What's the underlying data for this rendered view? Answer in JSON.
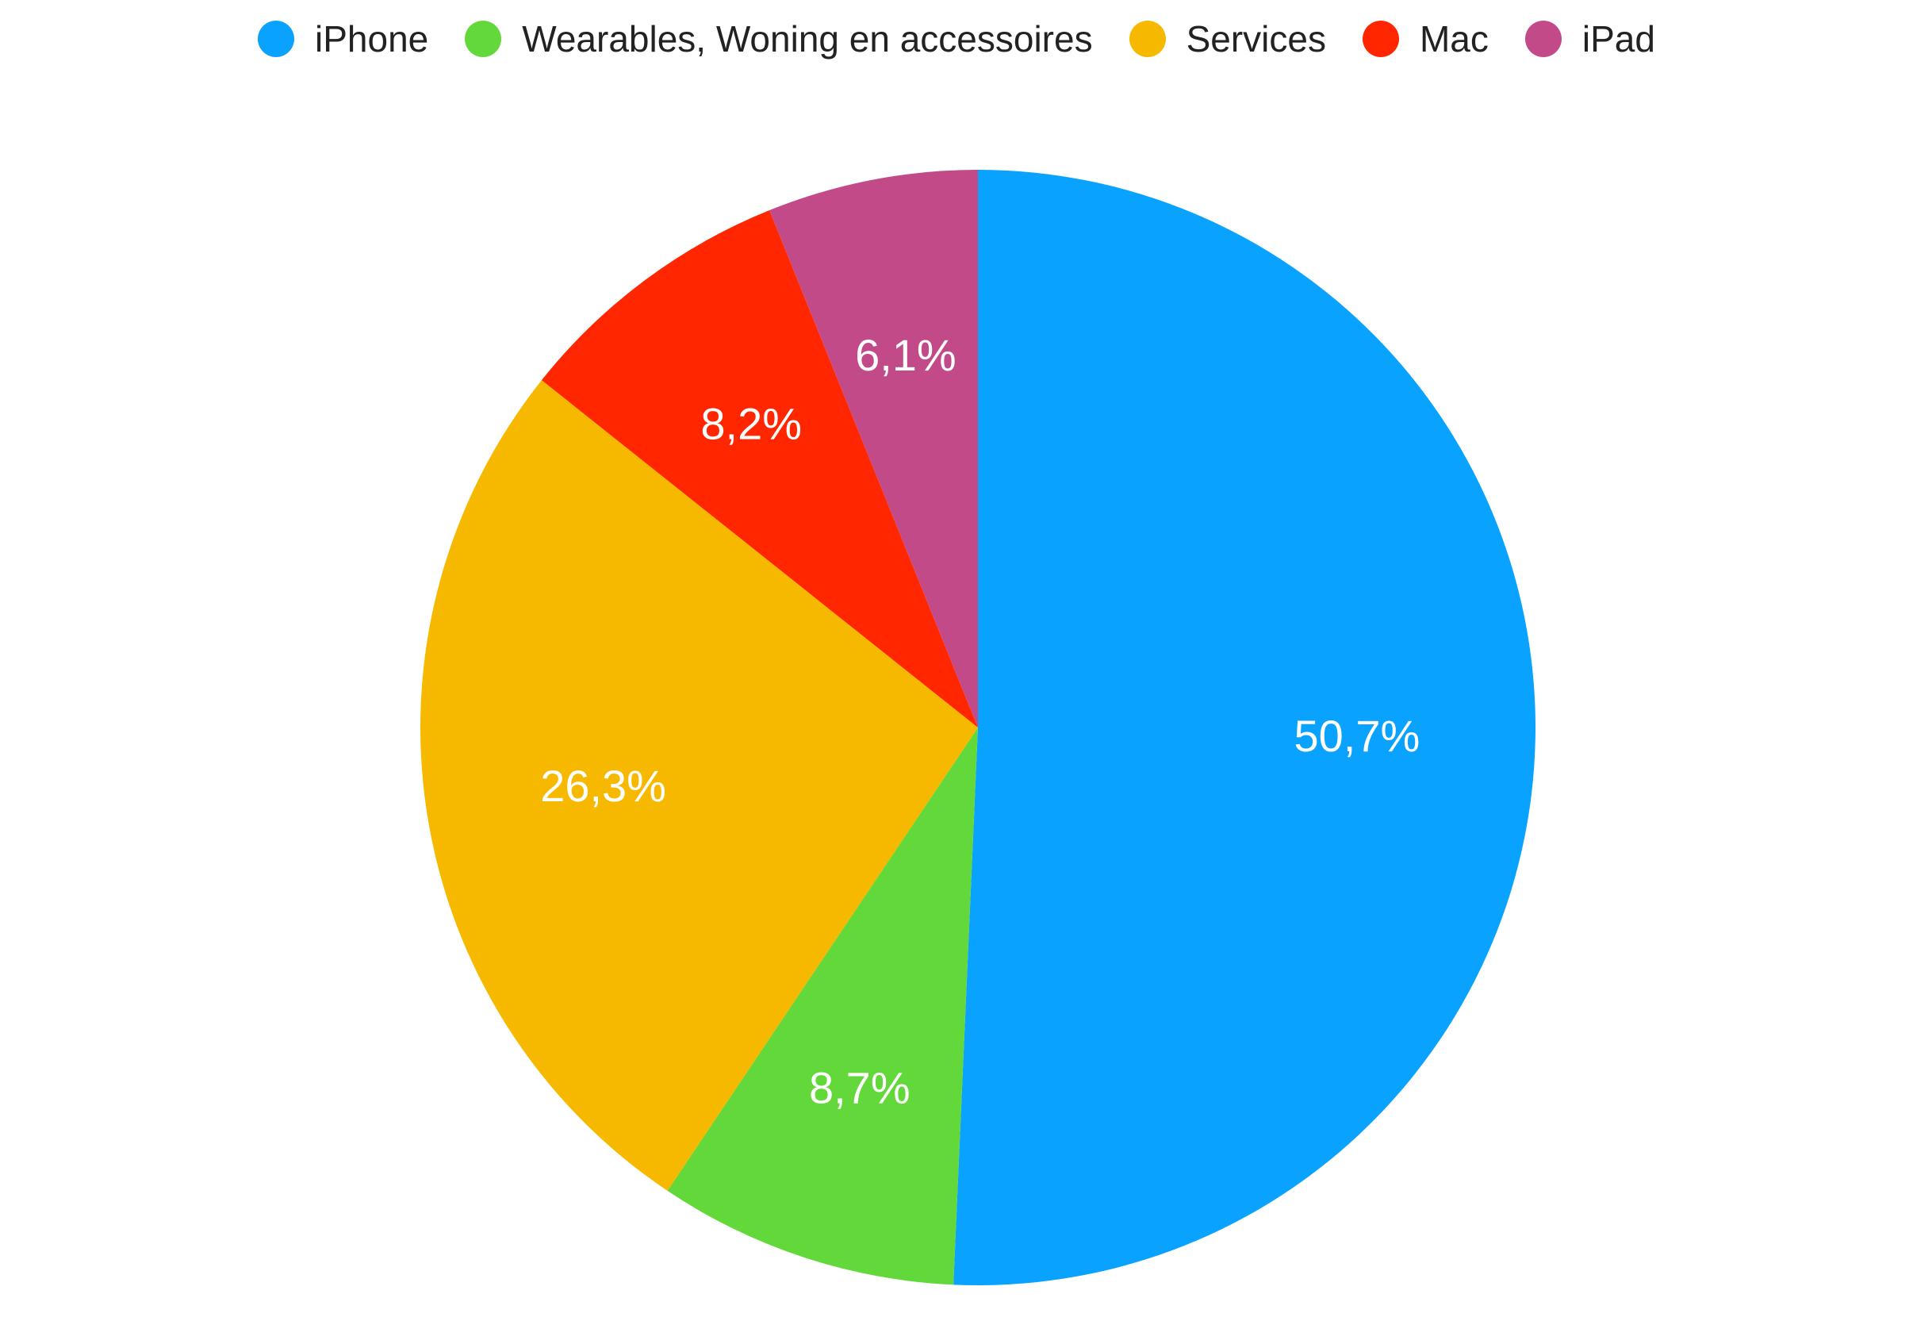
{
  "chart_data": {
    "type": "pie",
    "title": "",
    "legend_position": "top",
    "start_angle_deg": 0,
    "direction": "clockwise",
    "slices": [
      {
        "name": "iPhone",
        "value": 50.7,
        "label": "50,7%",
        "color": "#0aa2ff"
      },
      {
        "name": "Wearables, Woning en accessoires",
        "value": 8.7,
        "label": "8,7%",
        "color": "#62d83a"
      },
      {
        "name": "Services",
        "value": 26.3,
        "label": "26,3%",
        "color": "#f7b900"
      },
      {
        "name": "Mac",
        "value": 8.2,
        "label": "8,2%",
        "color": "#ff2600"
      },
      {
        "name": "iPad",
        "value": 6.1,
        "label": "6,1%",
        "color": "#c24a88"
      }
    ]
  }
}
